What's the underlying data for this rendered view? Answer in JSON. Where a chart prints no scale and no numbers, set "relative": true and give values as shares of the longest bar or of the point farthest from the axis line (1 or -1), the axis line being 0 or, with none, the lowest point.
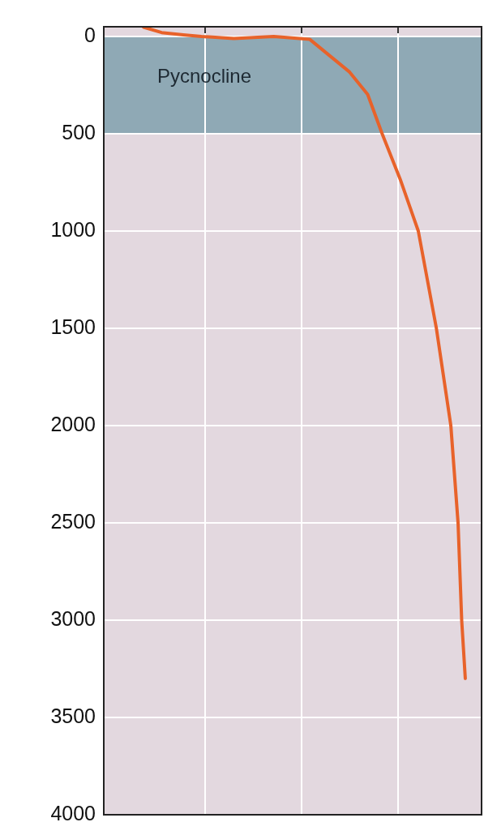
{
  "chart_data": {
    "type": "line",
    "orientation": "horizontal",
    "relative": true,
    "series": [
      {
        "color": "#e8622a",
        "x": [
          -48,
          -20,
          -8,
          0,
          10,
          0,
          15,
          183,
          298,
          500,
          734,
          1000,
          1500,
          2000,
          2500,
          3000,
          3300
        ],
        "values": [
          0.11,
          0.16,
          0.22,
          0.27,
          0.36,
          0.47,
          0.57,
          0.68,
          0.73,
          0.77,
          0.82,
          0.87,
          0.92,
          0.96,
          0.98,
          0.99,
          1
        ]
      }
    ],
    "ylim": [
      4000,
      -50
    ],
    "yticks": [
      0,
      500,
      1000,
      1500,
      2000,
      2500,
      3000,
      3500,
      4000
    ],
    "grid": true,
    "marker": "none",
    "line_style": "solid",
    "bands": [
      {
        "axis": "y",
        "from": 0,
        "to": 500,
        "label": "Pycnocline",
        "color": "#8fa9b5"
      }
    ]
  }
}
